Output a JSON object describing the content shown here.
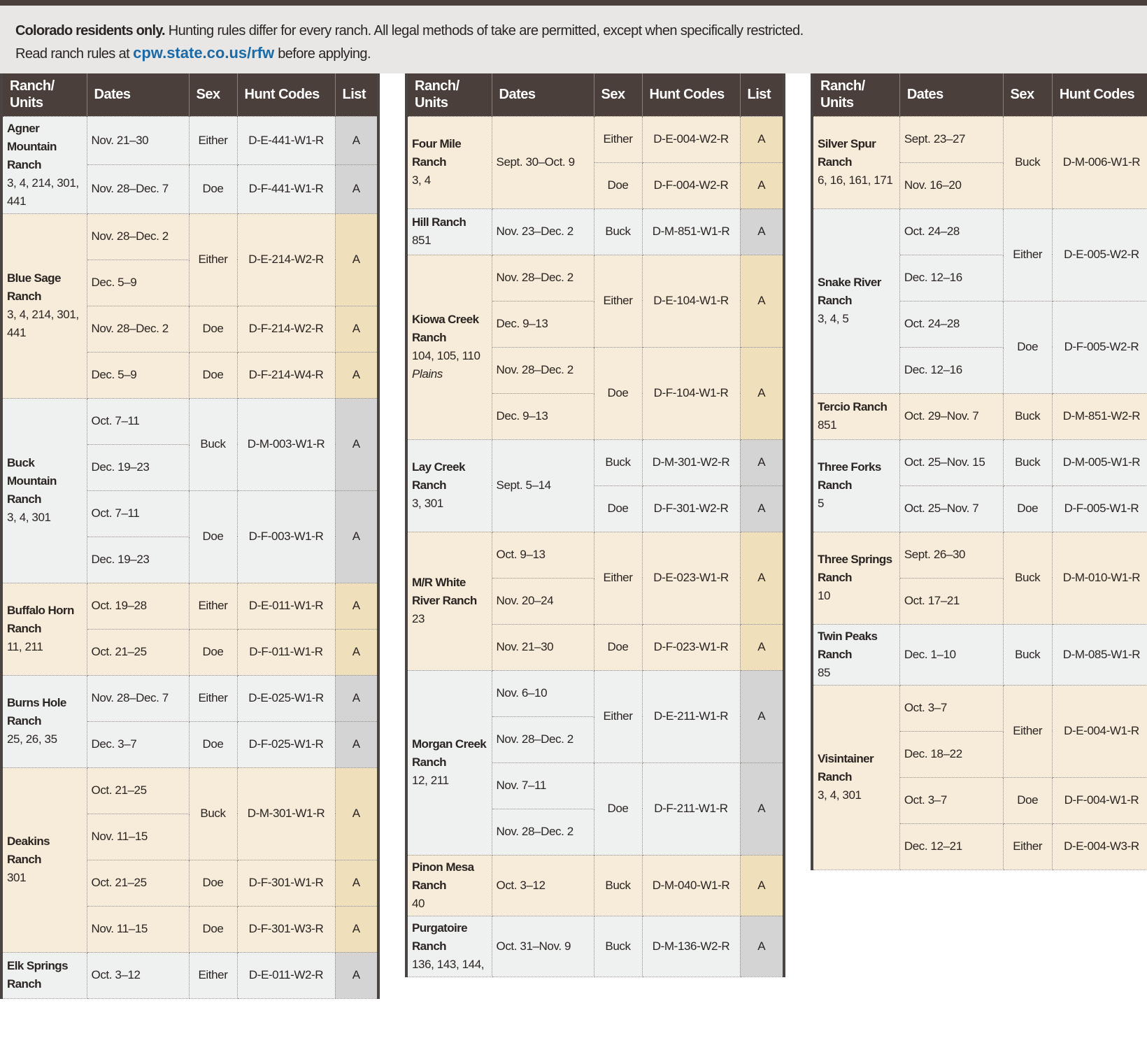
{
  "intro": {
    "lead": "Colorado residents only.",
    "text": " Hunting rules differ for every ranch. All legal methods of take are permitted, except when specifically restricted.",
    "line2_before": "Read ranch rules at ",
    "link": "cpw.state.co.us/rfw",
    "line2_after": " before applying."
  },
  "tables": [
    {
      "headers": [
        "Ranch/\nUnits",
        "Dates",
        "Sex",
        "Hunt Codes",
        "List"
      ],
      "ranches": [
        {
          "name": "Agner Mountain Ranch",
          "units": "3, 4, 214, 301, 441",
          "groups": [
            {
              "dates": [
                "Nov. 21–30"
              ],
              "sex": "Either",
              "code": "D-E-441-W1-R",
              "list": "A"
            },
            {
              "dates": [
                "Nov. 28–Dec. 7"
              ],
              "sex": "Doe",
              "code": "D-F-441-W1-R",
              "list": "A"
            }
          ]
        },
        {
          "name": "Blue Sage Ranch",
          "units": "3, 4, 214, 301, 441",
          "groups": [
            {
              "dates": [
                "Nov. 28–Dec. 2",
                "Dec. 5–9"
              ],
              "sex": "Either",
              "code": "D-E-214-W2-R",
              "list": "A"
            },
            {
              "dates": [
                "Nov. 28–Dec. 2"
              ],
              "sex": "Doe",
              "code": "D-F-214-W2-R",
              "list": "A"
            },
            {
              "dates": [
                "Dec. 5–9"
              ],
              "sex": "Doe",
              "code": "D-F-214-W4-R",
              "list": "A"
            }
          ]
        },
        {
          "name": "Buck Mountain Ranch",
          "units": "3, 4, 301",
          "groups": [
            {
              "dates": [
                "Oct. 7–11",
                "Dec. 19–23"
              ],
              "sex": "Buck",
              "code": "D-M-003-W1-R",
              "list": "A"
            },
            {
              "dates": [
                "Oct. 7–11",
                "Dec. 19–23"
              ],
              "sex": "Doe",
              "code": "D-F-003-W1-R",
              "list": "A"
            }
          ]
        },
        {
          "name": "Buffalo Horn Ranch",
          "units": "11, 211",
          "groups": [
            {
              "dates": [
                "Oct. 19–28"
              ],
              "sex": "Either",
              "code": "D-E-011-W1-R",
              "list": "A"
            },
            {
              "dates": [
                "Oct. 21–25"
              ],
              "sex": "Doe",
              "code": "D-F-011-W1-R",
              "list": "A"
            }
          ]
        },
        {
          "name": "Burns Hole Ranch",
          "units": "25, 26, 35",
          "groups": [
            {
              "dates": [
                "Nov. 28–Dec. 7"
              ],
              "sex": "Either",
              "code": "D-E-025-W1-R",
              "list": "A"
            },
            {
              "dates": [
                "Dec. 3–7"
              ],
              "sex": "Doe",
              "code": "D-F-025-W1-R",
              "list": "A"
            }
          ]
        },
        {
          "name": "Deakins Ranch",
          "units": "301",
          "groups": [
            {
              "dates": [
                "Oct. 21–25",
                "Nov. 11–15"
              ],
              "sex": "Buck",
              "code": "D-M-301-W1-R",
              "list": "A"
            },
            {
              "dates": [
                "Oct. 21–25"
              ],
              "sex": "Doe",
              "code": "D-F-301-W1-R",
              "list": "A"
            },
            {
              "dates": [
                "Nov. 11–15"
              ],
              "sex": "Doe",
              "code": "D-F-301-W3-R",
              "list": "A"
            }
          ]
        },
        {
          "name": "Elk Springs Ranch",
          "dates": [
            "Oct. 3–12"
          ],
          "groups": [
            {
              "sex": "Either",
              "code": "D-E-011-W2-R",
              "list": "A"
            }
          ]
        }
      ]
    },
    {
      "headers": [
        "Ranch/\nUnits",
        "Dates",
        "Sex",
        "Hunt Codes",
        "List"
      ],
      "ranches": [
        {
          "name": "Four Mile Ranch",
          "units": "3, 4",
          "dates": [
            "Sept. 30–Oct. 9"
          ],
          "groups": [
            {
              "sex": "Either",
              "code": "D-E-004-W2-R",
              "list": "A"
            },
            {
              "sex": "Doe",
              "code": "D-F-004-W2-R",
              "list": "A"
            }
          ]
        },
        {
          "name": "Hill Ranch",
          "units": "851",
          "groups": [
            {
              "dates": [
                "Nov. 23–Dec. 2"
              ],
              "sex": "Buck",
              "code": "D-M-851-W1-R",
              "list": "A"
            }
          ]
        },
        {
          "name": "Kiowa Creek Ranch",
          "units": "104, 105, 110",
          "note": "Plains",
          "groups": [
            {
              "dates": [
                "Nov. 28–Dec. 2",
                "Dec. 9–13"
              ],
              "sex": "Either",
              "code": "D-E-104-W1-R",
              "list": "A"
            },
            {
              "dates": [
                "Nov. 28–Dec. 2",
                "Dec. 9–13"
              ],
              "sex": "Doe",
              "code": "D-F-104-W1-R",
              "list": "A"
            }
          ]
        },
        {
          "name": "Lay Creek Ranch",
          "units": "3, 301",
          "dates": [
            "Sept. 5–14"
          ],
          "groups": [
            {
              "sex": "Buck",
              "code": "D-M-301-W2-R",
              "list": "A"
            },
            {
              "sex": "Doe",
              "code": "D-F-301-W2-R",
              "list": "A"
            }
          ]
        },
        {
          "name": "M/R White River Ranch",
          "units": "23",
          "groups": [
            {
              "dates": [
                "Oct. 9–13",
                "Nov. 20–24"
              ],
              "sex": "Either",
              "code": "D-E-023-W1-R",
              "list": "A"
            },
            {
              "dates": [
                "Nov. 21–30"
              ],
              "sex": "Doe",
              "code": "D-F-023-W1-R",
              "list": "A"
            }
          ]
        },
        {
          "name": "Morgan Creek Ranch",
          "units": "12, 211",
          "groups": [
            {
              "dates": [
                "Nov. 6–10",
                "Nov. 28–Dec. 2"
              ],
              "sex": "Either",
              "code": "D-E-211-W1-R",
              "list": "A"
            },
            {
              "dates": [
                "Nov. 7–11",
                "Nov. 28–Dec. 2"
              ],
              "sex": "Doe",
              "code": "D-F-211-W1-R",
              "list": "A"
            }
          ]
        },
        {
          "name": "Pinon Mesa Ranch",
          "units": "40",
          "groups": [
            {
              "dates": [
                "Oct. 3–12"
              ],
              "sex": "Buck",
              "code": "D-M-040-W1-R",
              "list": "A"
            }
          ]
        },
        {
          "name": "Purgatoire Ranch",
          "units": "136, 143, 144,",
          "groups": [
            {
              "dates": [
                "Oct. 31–Nov. 9"
              ],
              "sex": "Buck",
              "code": "D-M-136-W2-R",
              "list": "A"
            }
          ]
        }
      ]
    },
    {
      "headers": [
        "Ranch/\nUnits",
        "Dates",
        "Sex",
        "Hunt Codes"
      ],
      "ranches": [
        {
          "name": "Silver Spur Ranch",
          "units": "6, 16, 161, 171",
          "groups": [
            {
              "dates": [
                "Sept. 23–27",
                "Nov. 16–20"
              ],
              "sex": "Buck",
              "code": "D-M-006-W1-R"
            }
          ]
        },
        {
          "name": "Snake River Ranch",
          "units": "3, 4, 5",
          "groups": [
            {
              "dates": [
                "Oct. 24–28",
                "Dec. 12–16"
              ],
              "sex": "Either",
              "code": "D-E-005-W2-R"
            },
            {
              "dates": [
                "Oct. 24–28",
                "Dec. 12–16"
              ],
              "sex": "Doe",
              "code": "D-F-005-W2-R"
            }
          ]
        },
        {
          "name": "Tercio Ranch",
          "units": "851",
          "groups": [
            {
              "dates": [
                "Oct. 29–Nov. 7"
              ],
              "sex": "Buck",
              "code": "D-M-851-W2-R"
            }
          ]
        },
        {
          "name": "Three Forks Ranch",
          "units": "5",
          "groups": [
            {
              "dates": [
                "Oct. 25–Nov. 15"
              ],
              "sex": "Buck",
              "code": "D-M-005-W1-R"
            },
            {
              "dates": [
                "Oct. 25–Nov. 7"
              ],
              "sex": "Doe",
              "code": "D-F-005-W1-R"
            }
          ]
        },
        {
          "name": "Three Springs Ranch",
          "units": "10",
          "groups": [
            {
              "dates": [
                "Sept. 26–30",
                "Oct. 17–21"
              ],
              "sex": "Buck",
              "code": "D-M-010-W1-R"
            }
          ]
        },
        {
          "name": "Twin Peaks Ranch",
          "units": "85",
          "groups": [
            {
              "dates": [
                "Dec. 1–10"
              ],
              "sex": "Buck",
              "code": "D-M-085-W1-R"
            }
          ]
        },
        {
          "name": "Visintainer Ranch",
          "units": "3, 4, 301",
          "groups": [
            {
              "dates": [
                "Oct. 3–7",
                "Dec. 18–22"
              ],
              "sex": "Either",
              "code": "D-E-004-W1-R"
            },
            {
              "dates": [
                "Oct. 3–7"
              ],
              "sex": "Doe",
              "code": "D-F-004-W1-R"
            },
            {
              "dates": [
                "Dec. 12–21"
              ],
              "sex": "Either",
              "code": "D-E-004-W3-R"
            }
          ]
        }
      ]
    }
  ]
}
